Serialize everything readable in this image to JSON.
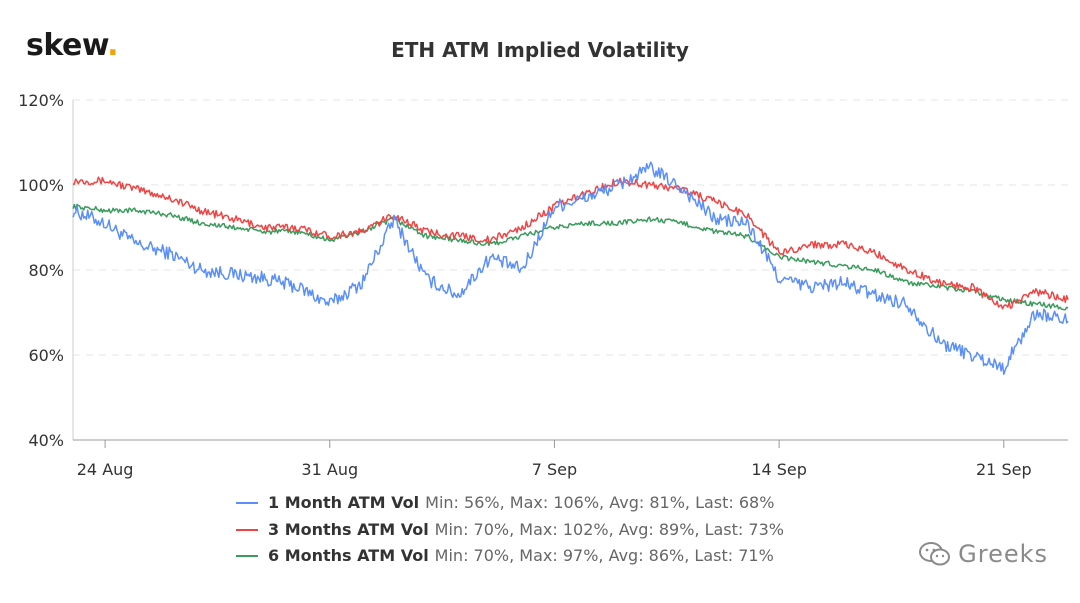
{
  "brand": {
    "name": "skew",
    "dot": "."
  },
  "watermark": {
    "text": "Greeks",
    "icon": "wechat-icon"
  },
  "chart_data": {
    "type": "line",
    "title": "ETH ATM Implied Volatility",
    "xlabel": "",
    "ylabel": "",
    "ylim": [
      40,
      120
    ],
    "yticks": [
      40,
      60,
      80,
      100,
      120
    ],
    "ytick_labels": [
      "40%",
      "60%",
      "80%",
      "100%",
      "120%"
    ],
    "xlim": [
      "2020-08-23",
      "2020-09-23"
    ],
    "xticks": [
      "2020-08-24",
      "2020-08-31",
      "2020-09-07",
      "2020-09-14",
      "2020-09-21"
    ],
    "xtick_labels": [
      "24 Aug",
      "31 Aug",
      "7 Sep",
      "14 Sep",
      "21 Sep"
    ],
    "grid": true,
    "legend_position": "bottom",
    "series": [
      {
        "name": "1 Month ATM Vol",
        "stats": "Min: 56%, Max: 106%, Avg: 81%, Last: 68%",
        "color": "#5b8ff9",
        "x": [
          "2020-08-23",
          "2020-08-24",
          "2020-08-25",
          "2020-08-26",
          "2020-08-27",
          "2020-08-28",
          "2020-08-29",
          "2020-08-30",
          "2020-08-31",
          "2020-09-01",
          "2020-09-02",
          "2020-09-03",
          "2020-09-04",
          "2020-09-05",
          "2020-09-06",
          "2020-09-07",
          "2020-09-08",
          "2020-09-09",
          "2020-09-10",
          "2020-09-11",
          "2020-09-12",
          "2020-09-13",
          "2020-09-14",
          "2020-09-15",
          "2020-09-16",
          "2020-09-17",
          "2020-09-18",
          "2020-09-19",
          "2020-09-20",
          "2020-09-21",
          "2020-09-22",
          "2020-09-23"
        ],
        "values": [
          94,
          91,
          86,
          84,
          80,
          79,
          78,
          76,
          72,
          77,
          92,
          78,
          74,
          83,
          80,
          95,
          97,
          100,
          104,
          99,
          92,
          91,
          78,
          76,
          77,
          74,
          72,
          63,
          60,
          57,
          70,
          68
        ]
      },
      {
        "name": "3 Months ATM Vol",
        "stats": "Min: 70%, Max: 102%, Avg: 89%, Last: 73%",
        "color": "#ef4444",
        "x": [
          "2020-08-23",
          "2020-08-24",
          "2020-08-25",
          "2020-08-26",
          "2020-08-27",
          "2020-08-28",
          "2020-08-29",
          "2020-08-30",
          "2020-08-31",
          "2020-09-01",
          "2020-09-02",
          "2020-09-03",
          "2020-09-04",
          "2020-09-05",
          "2020-09-06",
          "2020-09-07",
          "2020-09-08",
          "2020-09-09",
          "2020-09-10",
          "2020-09-11",
          "2020-09-12",
          "2020-09-13",
          "2020-09-14",
          "2020-09-15",
          "2020-09-16",
          "2020-09-17",
          "2020-09-18",
          "2020-09-19",
          "2020-09-20",
          "2020-09-21",
          "2020-09-22",
          "2020-09-23"
        ],
        "values": [
          101,
          101,
          99,
          97,
          94,
          92,
          90,
          90,
          88,
          89,
          93,
          89,
          88,
          87,
          90,
          95,
          98,
          101,
          100,
          99,
          96,
          93,
          84,
          86,
          86,
          84,
          80,
          77,
          76,
          71,
          75,
          73
        ]
      },
      {
        "name": "6 Months ATM Vol",
        "stats": "Min: 70%, Max: 97%, Avg: 86%, Last: 71%",
        "color": "#3a9b5c",
        "x": [
          "2020-08-23",
          "2020-08-24",
          "2020-08-25",
          "2020-08-26",
          "2020-08-27",
          "2020-08-28",
          "2020-08-29",
          "2020-08-30",
          "2020-08-31",
          "2020-09-01",
          "2020-09-02",
          "2020-09-03",
          "2020-09-04",
          "2020-09-05",
          "2020-09-06",
          "2020-09-07",
          "2020-09-08",
          "2020-09-09",
          "2020-09-10",
          "2020-09-11",
          "2020-09-12",
          "2020-09-13",
          "2020-09-14",
          "2020-09-15",
          "2020-09-16",
          "2020-09-17",
          "2020-09-18",
          "2020-09-19",
          "2020-09-20",
          "2020-09-21",
          "2020-09-22",
          "2020-09-23"
        ],
        "values": [
          95,
          94,
          94,
          93,
          91,
          90,
          89,
          89,
          87,
          89,
          92,
          88,
          87,
          86,
          88,
          90,
          91,
          91,
          92,
          91,
          89,
          88,
          83,
          82,
          81,
          80,
          77,
          76,
          75,
          73,
          72,
          71
        ]
      }
    ]
  }
}
